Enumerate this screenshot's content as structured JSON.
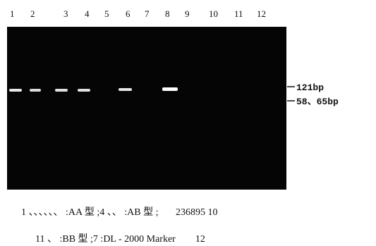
{
  "figure": {
    "lanes": [
      "1",
      "2",
      "3",
      "4",
      "5",
      "6",
      "7",
      "8",
      "9",
      "10",
      "11",
      "12"
    ],
    "markers": [
      "121bp",
      "58、65bp"
    ],
    "caption": [
      "1 、、、、、、 :AA 型 ;4 、、 :AB 型 ;       236895 10",
      "11 、 :BB 型 ;7 :DL - 2000 Marker        12"
    ]
  }
}
